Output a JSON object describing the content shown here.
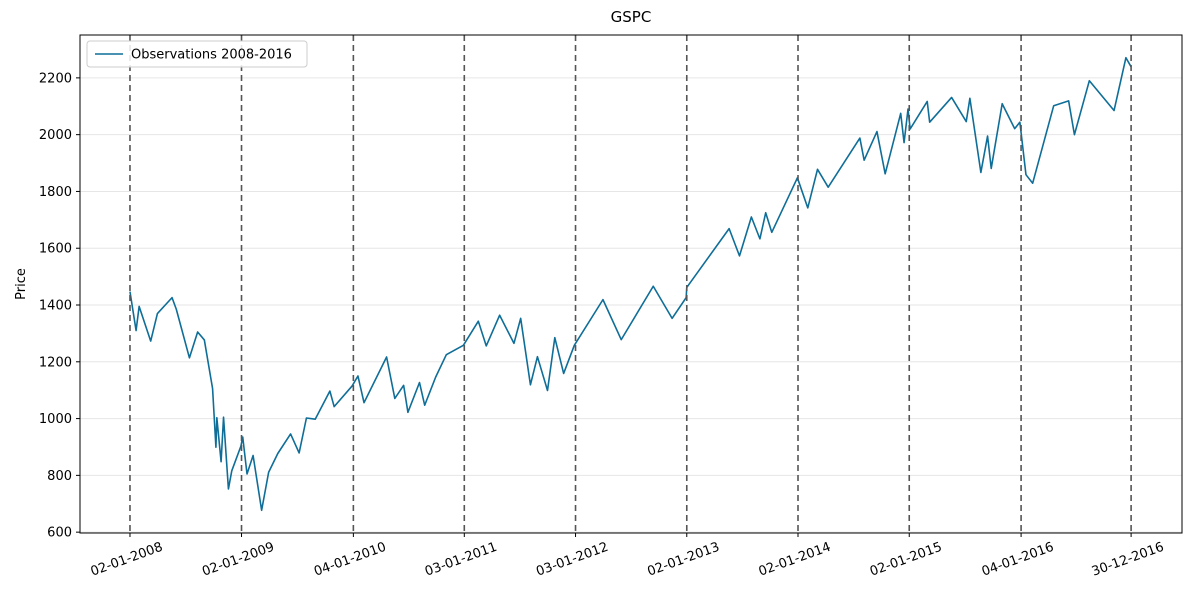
{
  "chart_data": {
    "type": "line",
    "title": "GSPC",
    "y_label": "Price",
    "x": [
      "2008-01-02",
      "2008-01-22",
      "2008-02-01",
      "2008-03-10",
      "2008-04-01",
      "2008-05-19",
      "2008-06-02",
      "2008-07-15",
      "2008-08-11",
      "2008-09-02",
      "2008-09-29",
      "2008-10-10",
      "2008-10-13",
      "2008-10-27",
      "2008-11-04",
      "2008-11-20",
      "2008-12-01",
      "2008-12-31",
      "2009-01-06",
      "2009-01-20",
      "2009-02-09",
      "2009-03-09",
      "2009-04-01",
      "2009-05-01",
      "2009-06-12",
      "2009-07-10",
      "2009-08-03",
      "2009-09-01",
      "2009-10-19",
      "2009-11-02",
      "2009-12-31",
      "2010-01-19",
      "2010-02-08",
      "2010-04-23",
      "2010-05-20",
      "2010-06-18",
      "2010-07-02",
      "2010-08-09",
      "2010-08-26",
      "2010-10-01",
      "2010-11-05",
      "2010-12-31",
      "2011-02-18",
      "2011-03-16",
      "2011-04-29",
      "2011-06-15",
      "2011-07-07",
      "2011-08-08",
      "2011-08-31",
      "2011-10-03",
      "2011-10-27",
      "2011-11-25",
      "2011-12-30",
      "2012-04-02",
      "2012-06-01",
      "2012-09-14",
      "2012-11-15",
      "2012-12-31",
      "2013-01-02",
      "2013-05-21",
      "2013-06-24",
      "2013-08-02",
      "2013-08-30",
      "2013-09-18",
      "2013-10-08",
      "2013-12-31",
      "2014-02-03",
      "2014-03-07",
      "2014-04-11",
      "2014-07-24",
      "2014-08-07",
      "2014-09-18",
      "2014-10-15",
      "2014-12-05",
      "2014-12-16",
      "2014-12-29",
      "2015-01-05",
      "2015-03-02",
      "2015-03-10",
      "2015-05-21",
      "2015-07-08",
      "2015-07-20",
      "2015-08-25",
      "2015-09-16",
      "2015-09-28",
      "2015-11-03",
      "2015-12-14",
      "2015-12-31",
      "2016-01-20",
      "2016-02-11",
      "2016-04-20",
      "2016-06-08",
      "2016-06-27",
      "2016-08-15",
      "2016-11-04",
      "2016-12-13",
      "2016-12-30"
    ],
    "series": [
      {
        "name": "Observations 2008-2016",
        "color": "#0f6e98",
        "values": [
          1447,
          1310,
          1395,
          1273,
          1370,
          1426,
          1385,
          1214,
          1305,
          1277,
          1106,
          899,
          1003,
          848,
          1005,
          752,
          816,
          903,
          935,
          805,
          870,
          677,
          811,
          877,
          946,
          879,
          1002,
          998,
          1097,
          1042,
          1115,
          1150,
          1056,
          1217,
          1071,
          1117,
          1022,
          1127,
          1047,
          1146,
          1225,
          1258,
          1343,
          1256,
          1364,
          1265,
          1353,
          1119,
          1218,
          1099,
          1285,
          1159,
          1258,
          1419,
          1278,
          1466,
          1353,
          1426,
          1462,
          1669,
          1573,
          1710,
          1633,
          1725,
          1656,
          1848,
          1742,
          1878,
          1815,
          1988,
          1910,
          2011,
          1862,
          2075,
          1972,
          2090,
          2020,
          2117,
          2044,
          2131,
          2046,
          2128,
          1867,
          1995,
          1881,
          2109,
          2021,
          2044,
          1859,
          1829,
          2102,
          2119,
          2000,
          2190,
          2085,
          2271,
          2239
        ]
      }
    ],
    "xlim": [
      "2007-07-22",
      "2017-06-15"
    ],
    "xticks": [
      {
        "value": "2008-01-02",
        "label": "02-01-2008"
      },
      {
        "value": "2009-01-02",
        "label": "02-01-2009"
      },
      {
        "value": "2010-01-04",
        "label": "04-01-2010"
      },
      {
        "value": "2011-01-03",
        "label": "03-01-2011"
      },
      {
        "value": "2012-01-03",
        "label": "03-01-2012"
      },
      {
        "value": "2013-01-02",
        "label": "02-01-2013"
      },
      {
        "value": "2014-01-02",
        "label": "02-01-2014"
      },
      {
        "value": "2015-01-02",
        "label": "02-01-2015"
      },
      {
        "value": "2016-01-04",
        "label": "04-01-2016"
      },
      {
        "value": "2016-12-30",
        "label": "30-12-2016"
      }
    ],
    "ylim": [
      597,
      2351
    ],
    "yticks": [
      600,
      800,
      1000,
      1200,
      1400,
      1600,
      1800,
      2000,
      2200
    ],
    "grid": true,
    "vlines_at_xticks": true,
    "legend": "upper left"
  }
}
